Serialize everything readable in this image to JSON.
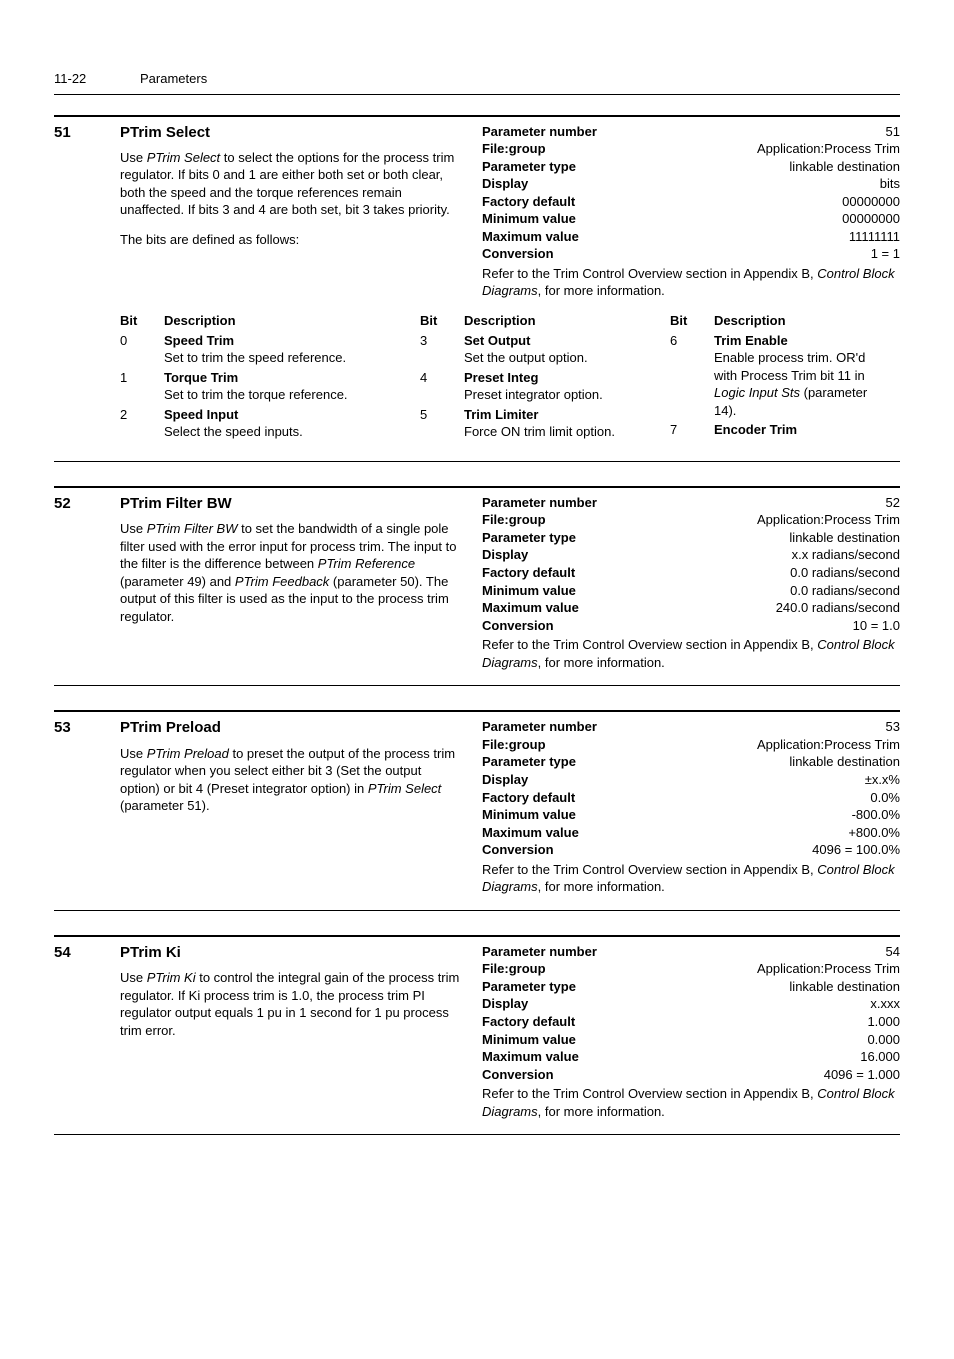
{
  "header": {
    "page": "11-22",
    "title": "Parameters"
  },
  "sections": [
    {
      "num": "51",
      "title": "PTrim Select",
      "desc_html": "Use <span class='italic'>PTrim Select</span> to select the options for the process trim regulator. If bits 0 and 1 are either both set or both clear, both the speed and the torque references remain unaffected. If bits 3 and 4 are both set, bit 3 takes priority.",
      "desc2": "The bits are defined as follows:",
      "props": [
        {
          "label": "Parameter number",
          "value": "51"
        },
        {
          "label": "File:group",
          "value": "Application:Process Trim"
        },
        {
          "label": "Parameter type",
          "value": "linkable destination"
        },
        {
          "label": "Display",
          "value": "bits"
        },
        {
          "label": "Factory default",
          "value": "00000000"
        },
        {
          "label": "Minimum value",
          "value": "00000000"
        },
        {
          "label": "Maximum value",
          "value": "11111111"
        },
        {
          "label": "Conversion",
          "value": "1 = 1"
        }
      ],
      "note_html": "Refer to the Trim Control Overview section in Appendix B, <span class='italic'>Control Block Diagrams</span>, for more information.",
      "bit_cols": [
        {
          "rows": [
            {
              "bit": "0",
              "name": "Speed Trim",
              "desc": "Set to trim the speed reference."
            },
            {
              "bit": "1",
              "name": "Torque Trim",
              "desc": "Set to trim the torque reference."
            },
            {
              "bit": "2",
              "name": "Speed Input",
              "desc": "Select the speed inputs."
            }
          ]
        },
        {
          "rows": [
            {
              "bit": "3",
              "name": "Set Output",
              "desc": "Set the output option."
            },
            {
              "bit": "4",
              "name": "Preset Integ",
              "desc": "Preset integrator option."
            },
            {
              "bit": "5",
              "name": "Trim Limiter",
              "desc": "Force ON trim limit option."
            }
          ]
        },
        {
          "rows": [
            {
              "bit": "6",
              "name": "Trim Enable",
              "desc_html": "Enable process trim. OR'd with Process Trim bit 11 in <span class='italic'>Logic Input Sts</span> (parameter 14)."
            },
            {
              "bit": "7",
              "name": "Encoder Trim",
              "desc": ""
            }
          ]
        }
      ]
    },
    {
      "num": "52",
      "title": "PTrim Filter BW",
      "desc_html": "Use <span class='italic'>PTrim Filter BW</span> to set the bandwidth of a single pole filter used with the error input for process trim. The input to the filter is the difference between <span class='italic'>PTrim Reference</span> (parameter 49) and <span class='italic'>PTrim Feedback</span> (parameter 50). The output of this filter is used as the input to the process trim regulator.",
      "props": [
        {
          "label": "Parameter number",
          "value": "52"
        },
        {
          "label": "File:group",
          "value": "Application:Process Trim"
        },
        {
          "label": "Parameter type",
          "value": "linkable destination"
        },
        {
          "label": "Display",
          "value": "x.x radians/second"
        },
        {
          "label": "Factory default",
          "value": "0.0 radians/second"
        },
        {
          "label": "Minimum value",
          "value": "0.0 radians/second"
        },
        {
          "label": "Maximum value",
          "value": "240.0 radians/second"
        },
        {
          "label": "Conversion",
          "value": "10 = 1.0"
        }
      ],
      "note_html": "Refer to the Trim Control Overview section in Appendix B, <span class='italic'>Control Block Diagrams</span>, for more information."
    },
    {
      "num": "53",
      "title": "PTrim Preload",
      "desc_html": "Use <span class='italic'>PTrim Preload</span> to preset the output of the process trim regulator when you select either bit 3 (Set the output option) or bit 4 (Preset integrator option) in <span class='italic'>PTrim Select</span> (parameter 51).",
      "props": [
        {
          "label": "Parameter number",
          "value": "53"
        },
        {
          "label": "File:group",
          "value": "Application:Process Trim"
        },
        {
          "label": "Parameter type",
          "value": "linkable destination"
        },
        {
          "label": "Display",
          "value": "±x.x%"
        },
        {
          "label": "Factory default",
          "value": "0.0%"
        },
        {
          "label": "Minimum value",
          "value": "-800.0%"
        },
        {
          "label": "Maximum value",
          "value": "+800.0%"
        },
        {
          "label": "Conversion",
          "value": "4096 = 100.0%"
        }
      ],
      "note_html": "Refer to the Trim Control Overview section in Appendix B, <span class='italic'>Control Block Diagrams</span>, for more information."
    },
    {
      "num": "54",
      "title": "PTrim Ki",
      "desc_html": "Use <span class='italic'>PTrim Ki</span> to control the integral gain of the process trim regulator. If Ki process trim is 1.0, the process trim PI regulator output equals 1 pu in 1 second for 1 pu process trim error.",
      "props": [
        {
          "label": "Parameter number",
          "value": "54"
        },
        {
          "label": "File:group",
          "value": "Application:Process Trim"
        },
        {
          "label": "Parameter type",
          "value": "linkable destination"
        },
        {
          "label": "Display",
          "value": "x.xxx"
        },
        {
          "label": "Factory default",
          "value": "1.000"
        },
        {
          "label": "Minimum value",
          "value": "0.000"
        },
        {
          "label": "Maximum value",
          "value": "16.000"
        },
        {
          "label": "Conversion",
          "value": "4096 = 1.000"
        }
      ],
      "note_html": "Refer to the Trim Control Overview section in Appendix B, <span class='italic'>Control Block Diagrams</span>, for more information."
    }
  ],
  "labels": {
    "bit": "Bit",
    "description": "Description"
  }
}
